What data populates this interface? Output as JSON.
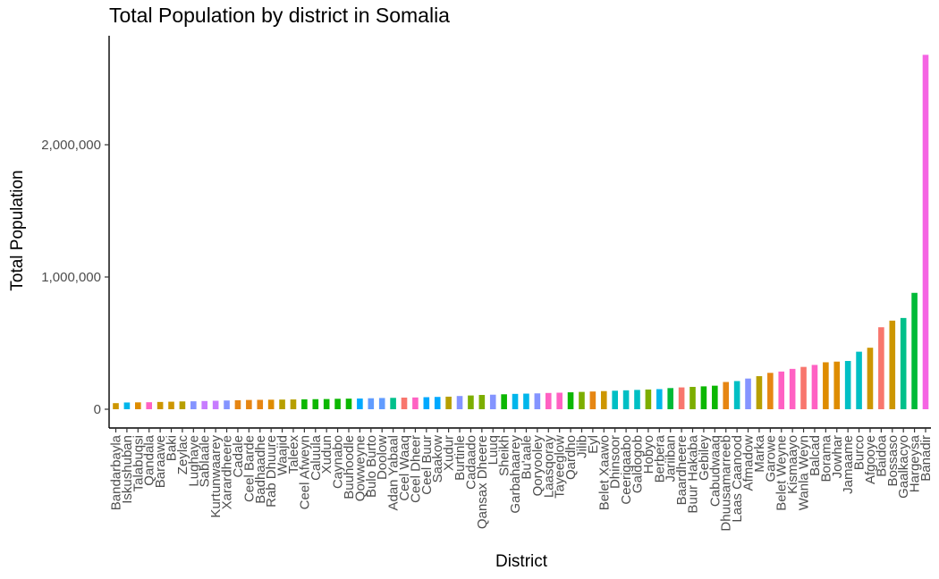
{
  "chart_data": {
    "type": "bar",
    "title": "Total Population by district in Somalia",
    "xlabel": "District",
    "ylabel": "Total Population",
    "ylim": [
      -40000,
      2750000
    ],
    "yticks": [
      0,
      1000000,
      2000000
    ],
    "ytick_labels": [
      "0",
      "1,000,000",
      "2,000,000"
    ],
    "legend": "none",
    "grid": false,
    "categories": [
      "Bandarbayla",
      "Iskushuban",
      "Talabuqsi",
      "Qandala",
      "Baraawe",
      "Baki",
      "Zeylac",
      "Lughaye",
      "Sablaale",
      "Kurtunwaarey",
      "Xarardheere",
      "Cadale",
      "Ceel Barde",
      "Badhaadhe",
      "Rab Dhuure",
      "Waajid",
      "Taleex",
      "Ceel Afweyn",
      "Caluula",
      "Xudun",
      "Caynabo",
      "Buuhoodle",
      "Qowweyne",
      "Bulo Burto",
      "Doolow",
      "Adan Yabaal",
      "Ceel Waaq",
      "Ceel Dheer",
      "Ceel Buur",
      "Saakow",
      "Xudur",
      "Burtinle",
      "Cadaado",
      "Qansax Dheere",
      "Luuq",
      "Sheikh",
      "Garbahaarey",
      "Bu'aale",
      "Qoryooley",
      "Laasqoray",
      "Tayeeglow",
      "Qardho",
      "Jilib",
      "Eyl",
      "Belet Xaawo",
      "Dhinsoor",
      "Ceerigaabo",
      "Galdogob",
      "Hobyo",
      "Berbera",
      "Jariiban",
      "Baardheere",
      "Buur Hakaba",
      "Gebiley",
      "Cabudwaaq",
      "Dhuusamarreeb",
      "Laas Caanood",
      "Afmadow",
      "Marka",
      "Garowe",
      "Belet Weyne",
      "Kismaayo",
      "Wanla Weyn",
      "Balcad",
      "Borama",
      "Jowhar",
      "Jamaame",
      "Burco",
      "Afgooye",
      "Baidoa",
      "Bossaso",
      "Gaalkacyo",
      "Hargeysa",
      "Banadir"
    ],
    "values": [
      46000,
      51000,
      52000,
      53000,
      55000,
      57000,
      59000,
      60000,
      62000,
      64000,
      66000,
      68000,
      70000,
      71000,
      72000,
      73000,
      74000,
      75000,
      76000,
      77000,
      79000,
      80000,
      81000,
      83000,
      85000,
      86000,
      88000,
      89000,
      91000,
      93000,
      95000,
      100000,
      104000,
      108000,
      110000,
      113000,
      116000,
      118000,
      120000,
      123000,
      125000,
      128000,
      131000,
      134000,
      137000,
      140000,
      143000,
      146000,
      149000,
      152000,
      160000,
      165000,
      169000,
      173000,
      178000,
      206000,
      213000,
      232000,
      250000,
      275000,
      285000,
      305000,
      320000,
      335000,
      355000,
      360000,
      365000,
      435000,
      465000,
      620000,
      670000,
      690000,
      880000,
      2680000
    ],
    "colors": [
      "#F8766D",
      "#00BA38",
      "#619CFF",
      "#C77CFF",
      "#00BFC4",
      "#7CAE00",
      "#FF61C3",
      "#DE8C00",
      "#00B6EB",
      "#CD9600",
      "#00C08B",
      "#F564E3",
      "#B79F00",
      "#8494FF",
      "#E68613",
      "#00A9FF",
      "#0CB702",
      "#ED68ED",
      "#ABA300",
      "#00BE67"
    ],
    "bar_color_sequence": [
      9,
      8,
      7,
      6,
      9,
      9,
      12,
      13,
      3,
      3,
      13,
      14,
      14,
      14,
      7,
      12,
      12,
      16,
      16,
      16,
      16,
      16,
      15,
      2,
      2,
      10,
      0,
      6,
      15,
      15,
      12,
      13,
      5,
      5,
      13,
      16,
      8,
      8,
      13,
      6,
      6,
      16,
      5,
      14,
      9,
      4,
      4,
      4,
      5,
      8,
      1,
      0,
      5,
      16,
      16,
      14,
      4,
      13,
      12,
      14,
      6,
      6,
      0,
      6,
      7,
      7,
      4,
      4,
      9,
      0,
      9,
      10,
      1,
      11
    ]
  }
}
